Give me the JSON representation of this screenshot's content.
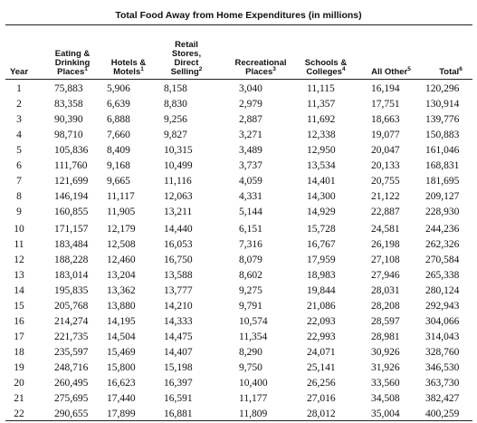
{
  "title": "Total Food Away from Home Expenditures (in millions)",
  "columns": [
    {
      "lines": [
        "Year"
      ],
      "note": ""
    },
    {
      "lines": [
        "Eating &",
        "Drinking",
        "Places"
      ],
      "note": "1"
    },
    {
      "lines": [
        "Hotels &",
        "Motels"
      ],
      "note": "1"
    },
    {
      "lines": [
        "Retail",
        "Stores,",
        "Direct",
        "Selling"
      ],
      "note": "2"
    },
    {
      "lines": [
        "Recreational",
        "Places"
      ],
      "note": "3"
    },
    {
      "lines": [
        "Schools &",
        "Colleges"
      ],
      "note": "4"
    },
    {
      "lines": [
        "All Other"
      ],
      "note": "5"
    },
    {
      "lines": [
        "Total"
      ],
      "note": "6"
    }
  ],
  "rows": [
    [
      "1",
      "75,883",
      "5,906",
      "8,158",
      "3,040",
      "11,115",
      "16,194",
      "120,296"
    ],
    [
      "2",
      "83,358",
      "6,639",
      "8,830",
      "2,979",
      "11,357",
      "17,751",
      "130,914"
    ],
    [
      "3",
      "90,390",
      "6,888",
      "9,256",
      "2,887",
      "11,692",
      "18,663",
      "139,776"
    ],
    [
      "4",
      "98,710",
      "7,660",
      "9,827",
      "3,271",
      "12,338",
      "19,077",
      "150,883"
    ],
    [
      "5",
      "105,836",
      "8,409",
      "10,315",
      "3,489",
      "12,950",
      "20,047",
      "161,046"
    ],
    [
      "6",
      "111,760",
      "9,168",
      "10,499",
      "3,737",
      "13,534",
      "20,133",
      "168,831"
    ],
    [
      "7",
      "121,699",
      "9,665",
      "11,116",
      "4,059",
      "14,401",
      "20,755",
      "181,695"
    ],
    [
      "8",
      "146,194",
      "11,117",
      "12,063",
      "4,331",
      "14,300",
      "21,122",
      "209,127"
    ],
    [
      "9",
      "160,855",
      "11,905",
      "13,211",
      "5,144",
      "14,929",
      "22,887",
      "228,930"
    ],
    [
      "10",
      "171,157",
      "12,179",
      "14,440",
      "6,151",
      "15,728",
      "24,581",
      "244,236"
    ],
    [
      "11",
      "183,484",
      "12,508",
      "16,053",
      "7,316",
      "16,767",
      "26,198",
      "262,326"
    ],
    [
      "12",
      "188,228",
      "12,460",
      "16,750",
      "8,079",
      "17,959",
      "27,108",
      "270,584"
    ],
    [
      "13",
      "183,014",
      "13,204",
      "13,588",
      "8,602",
      "18,983",
      "27,946",
      "265,338"
    ],
    [
      "14",
      "195,835",
      "13,362",
      "13,777",
      "9,275",
      "19,844",
      "28,031",
      "280,124"
    ],
    [
      "15",
      "205,768",
      "13,880",
      "14,210",
      "9,791",
      "21,086",
      "28,208",
      "292,943"
    ],
    [
      "16",
      "214,274",
      "14,195",
      "14,333",
      "10,574",
      "22,093",
      "28,597",
      "304,066"
    ],
    [
      "17",
      "221,735",
      "14,504",
      "14,475",
      "11,354",
      "22,993",
      "28,981",
      "314,043"
    ],
    [
      "18",
      "235,597",
      "15,469",
      "14,407",
      "8,290",
      "24,071",
      "30,926",
      "328,760"
    ],
    [
      "19",
      "248,716",
      "15,800",
      "15,198",
      "9,750",
      "25,141",
      "31,926",
      "346,530"
    ],
    [
      "20",
      "260,495",
      "16,623",
      "16,397",
      "10,400",
      "26,256",
      "33,560",
      "363,730"
    ],
    [
      "21",
      "275,695",
      "17,440",
      "16,591",
      "11,177",
      "27,016",
      "34,508",
      "382,427"
    ],
    [
      "22",
      "290,655",
      "17,899",
      "16,881",
      "11,809",
      "28,012",
      "35,004",
      "400,259"
    ]
  ]
}
